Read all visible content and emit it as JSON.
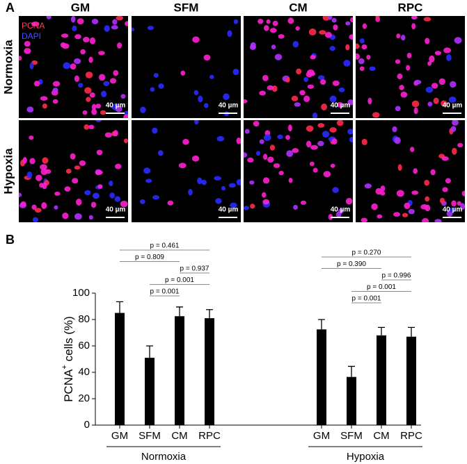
{
  "panel_a": {
    "label": "A",
    "columns": [
      "GM",
      "SFM",
      "CM",
      "RPC"
    ],
    "rows": [
      "Normoxia",
      "Hypoxia"
    ],
    "legend": [
      {
        "name": "PCNA",
        "color": "#ff3d5a"
      },
      {
        "name": "DAPI",
        "color": "#4a4aff"
      }
    ],
    "scale_bar": "40 µm"
  },
  "chart_data": {
    "type": "bar",
    "panel_label": "B",
    "y_label": "PCNA",
    "y_label_sup": "+",
    "y_label_rest": " cells (%)",
    "ylim": [
      0,
      100
    ],
    "yticks": [
      0,
      20,
      40,
      60,
      80,
      100
    ],
    "color": "#000000",
    "groups": [
      {
        "name": "Normoxia",
        "categories": [
          "GM",
          "SFM",
          "CM",
          "RPC"
        ],
        "values": [
          85,
          51,
          82.5,
          81
        ],
        "errors": [
          8.5,
          9,
          7,
          6.5
        ],
        "brackets": [
          {
            "label": "p = 0.461",
            "from": 0,
            "to": 3
          },
          {
            "label": "p = 0.809",
            "from": 0,
            "to": 2
          },
          {
            "label": "p = 0.937",
            "from": 2,
            "to": 3
          },
          {
            "label": "p = 0.001",
            "from": 1,
            "to": 3
          },
          {
            "label": "p = 0.001",
            "from": 1,
            "to": 2
          }
        ]
      },
      {
        "name": "Hypoxia",
        "categories": [
          "GM",
          "SFM",
          "CM",
          "RPC"
        ],
        "values": [
          72.5,
          36.5,
          68,
          67
        ],
        "errors": [
          7.5,
          8,
          6,
          7
        ],
        "brackets": [
          {
            "label": "p = 0.270",
            "from": 0,
            "to": 3
          },
          {
            "label": "p = 0.390",
            "from": 0,
            "to": 2
          },
          {
            "label": "p = 0.996",
            "from": 2,
            "to": 3
          },
          {
            "label": "p = 0.001",
            "from": 1,
            "to": 3
          },
          {
            "label": "p = 0.001",
            "from": 1,
            "to": 2
          }
        ]
      }
    ]
  }
}
